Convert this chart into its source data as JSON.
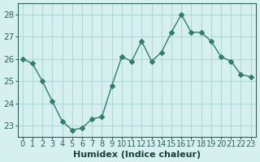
{
  "x": [
    0,
    1,
    2,
    3,
    4,
    5,
    6,
    7,
    8,
    9,
    10,
    11,
    12,
    13,
    14,
    15,
    16,
    17,
    18,
    19,
    20,
    21,
    22,
    23
  ],
  "y": [
    26.0,
    25.8,
    25.0,
    24.1,
    23.2,
    22.8,
    22.9,
    23.3,
    23.4,
    24.8,
    26.1,
    25.9,
    26.8,
    25.9,
    26.3,
    27.2,
    28.0,
    27.2,
    27.2,
    26.8,
    26.1,
    25.9,
    25.3,
    25.2
  ],
  "line_color": "#2e7d6e",
  "marker": "D",
  "marker_size": 3,
  "bg_color": "#d6f0f0",
  "grid_color": "#b0d8d8",
  "xlabel": "Humidex (Indice chaleur)",
  "ylim": [
    22.5,
    28.5
  ],
  "yticks": [
    23,
    24,
    25,
    26,
    27,
    28
  ],
  "xlim": [
    -0.5,
    23.5
  ],
  "tick_color": "#2e6060",
  "label_color": "#1a4040",
  "font_size": 7.5
}
